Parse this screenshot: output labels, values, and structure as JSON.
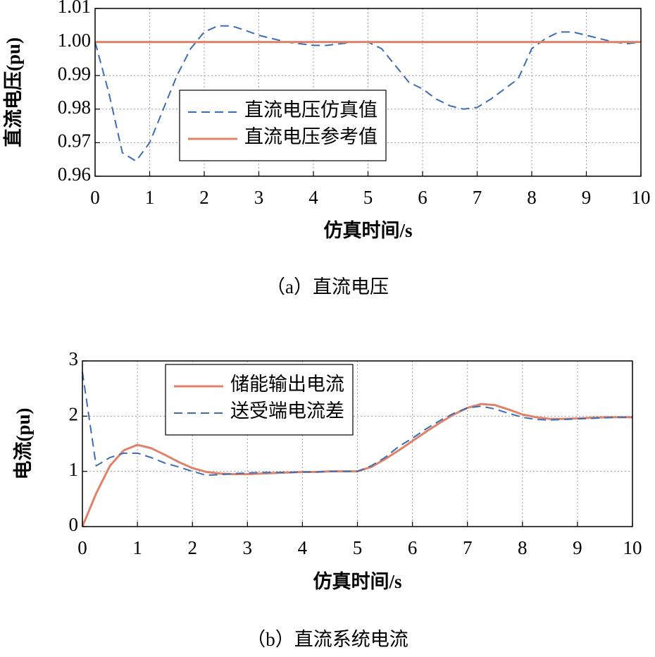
{
  "chart_data": [
    {
      "type": "line",
      "xlabel": "仿真时间/s",
      "ylabel": "直流电压(pu)",
      "caption": "（a）直流电压",
      "x": [
        0,
        0.25,
        0.5,
        0.75,
        1,
        1.25,
        1.5,
        1.75,
        2,
        2.25,
        2.5,
        2.75,
        3,
        3.25,
        3.5,
        3.75,
        4,
        4.25,
        4.5,
        4.75,
        5,
        5.25,
        5.5,
        5.75,
        6,
        6.25,
        6.5,
        6.75,
        7,
        7.25,
        7.5,
        7.75,
        8,
        8.25,
        8.5,
        8.75,
        9,
        9.25,
        9.5,
        9.75,
        10
      ],
      "series": [
        {
          "name": "直流电压仿真值",
          "color": "#3b6db4",
          "style": "dashed",
          "values": [
            1.0,
            0.985,
            0.967,
            0.9645,
            0.97,
            0.98,
            0.99,
            0.998,
            1.003,
            1.0048,
            1.0048,
            1.0035,
            1.002,
            1.001,
            1.0,
            0.9995,
            0.999,
            0.999,
            0.9995,
            1.0,
            1.0,
            0.998,
            0.993,
            0.988,
            0.986,
            0.983,
            0.981,
            0.98,
            0.9805,
            0.983,
            0.986,
            0.989,
            0.998,
            1.001,
            1.003,
            1.003,
            1.002,
            1.001,
            1.0,
            0.9995,
            1.0
          ]
        },
        {
          "name": "直流电压参考值",
          "color": "#e0826a",
          "style": "solid",
          "values": [
            1,
            1,
            1,
            1,
            1,
            1,
            1,
            1,
            1,
            1,
            1,
            1,
            1,
            1,
            1,
            1,
            1,
            1,
            1,
            1,
            1,
            1,
            1,
            1,
            1,
            1,
            1,
            1,
            1,
            1,
            1,
            1,
            1,
            1,
            1,
            1,
            1,
            1,
            1,
            1,
            1
          ]
        }
      ],
      "xlim": [
        0,
        10
      ],
      "xticks": [
        0,
        1,
        2,
        3,
        4,
        5,
        6,
        7,
        8,
        9,
        10
      ],
      "ylim": [
        0.96,
        1.01
      ],
      "yticks": [
        0.96,
        0.97,
        0.98,
        0.99,
        {
          "value": 1,
          "label": "1.00"
        },
        1.01
      ],
      "grid": true,
      "legend": "center left"
    },
    {
      "type": "line",
      "xlabel": "仿真时间/s",
      "ylabel": "电流(pu)",
      "caption": "（b）直流系统电流",
      "x": [
        0,
        0.25,
        0.5,
        0.75,
        1,
        1.25,
        1.5,
        1.75,
        2,
        2.25,
        2.5,
        2.75,
        3,
        3.25,
        3.5,
        3.75,
        4,
        4.25,
        4.5,
        4.75,
        5,
        5.25,
        5.5,
        5.75,
        6,
        6.25,
        6.5,
        6.75,
        7,
        7.25,
        7.5,
        7.75,
        8,
        8.25,
        8.5,
        8.75,
        9,
        9.25,
        9.5,
        9.75,
        10
      ],
      "series": [
        {
          "name": "储能输出电流",
          "color": "#e0826a",
          "style": "solid",
          "values": [
            0,
            0.6,
            1.1,
            1.38,
            1.48,
            1.42,
            1.3,
            1.17,
            1.06,
            0.99,
            0.96,
            0.95,
            0.95,
            0.96,
            0.97,
            0.98,
            0.99,
            0.99,
            1.0,
            1.0,
            1.0,
            1.08,
            1.22,
            1.38,
            1.55,
            1.72,
            1.88,
            2.03,
            2.15,
            2.22,
            2.2,
            2.12,
            2.03,
            1.98,
            1.95,
            1.95,
            1.96,
            1.97,
            1.98,
            1.98,
            1.98
          ]
        },
        {
          "name": "送受端电流差",
          "color": "#3b6db4",
          "style": "dashed",
          "values": [
            2.8,
            1.1,
            1.25,
            1.33,
            1.33,
            1.25,
            1.15,
            1.08,
            1.0,
            0.93,
            0.94,
            0.96,
            0.97,
            0.98,
            0.98,
            0.98,
            0.99,
            0.99,
            1.0,
            1.0,
            1.0,
            1.1,
            1.25,
            1.45,
            1.6,
            1.77,
            1.92,
            2.05,
            2.15,
            2.18,
            2.13,
            2.05,
            1.98,
            1.94,
            1.93,
            1.94,
            1.95,
            1.96,
            1.97,
            1.98,
            1.98
          ]
        }
      ],
      "xlim": [
        0,
        10
      ],
      "xticks": [
        0,
        1,
        2,
        3,
        4,
        5,
        6,
        7,
        8,
        9,
        10
      ],
      "ylim": [
        0,
        3
      ],
      "yticks": [
        0,
        1,
        2,
        3
      ],
      "grid": true,
      "legend": "upper left"
    }
  ]
}
